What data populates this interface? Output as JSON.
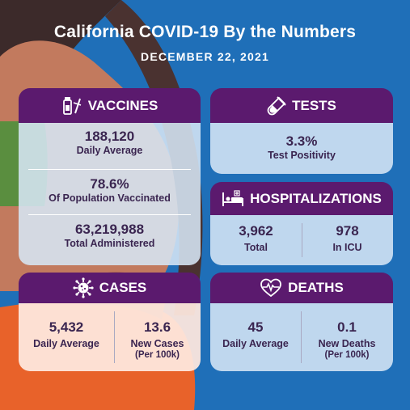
{
  "header": {
    "title": "California COVID-19 By the Numbers",
    "date": "DECEMBER 22, 2021"
  },
  "vaccines": {
    "title": "VACCINES",
    "icon": "vaccine-vial-icon",
    "daily_value": "188,120",
    "daily_label": "Daily Average",
    "pop_value": "78.6%",
    "pop_label": "Of Population Vaccinated",
    "total_value": "63,219,988",
    "total_label": "Total Administered"
  },
  "tests": {
    "title": "TESTS",
    "icon": "test-tube-icon",
    "value": "3.3%",
    "label": "Test Positivity"
  },
  "hospitalizations": {
    "title": "HOSPITALIZATIONS",
    "icon": "hospital-bed-icon",
    "total_value": "3,962",
    "total_label": "Total",
    "icu_value": "978",
    "icu_label": "In ICU"
  },
  "cases": {
    "title": "CASES",
    "icon": "virus-icon",
    "daily_value": "5,432",
    "daily_label": "Daily Average",
    "new_value": "13.6",
    "new_label_1": "New Cases",
    "new_label_2": "(Per 100k)"
  },
  "deaths": {
    "title": "DEATHS",
    "icon": "heartbeat-icon",
    "daily_value": "45",
    "daily_label": "Daily Average",
    "new_value": "0.1",
    "new_label_1": "New Deaths",
    "new_label_2": "(Per 100k)"
  },
  "colors": {
    "background": "#1f6fb8",
    "header_purple": "#5b1a6e",
    "card_blue": "#d6e6f5",
    "card_peach": "#fee8de",
    "accent_orange": "#e8622a"
  }
}
